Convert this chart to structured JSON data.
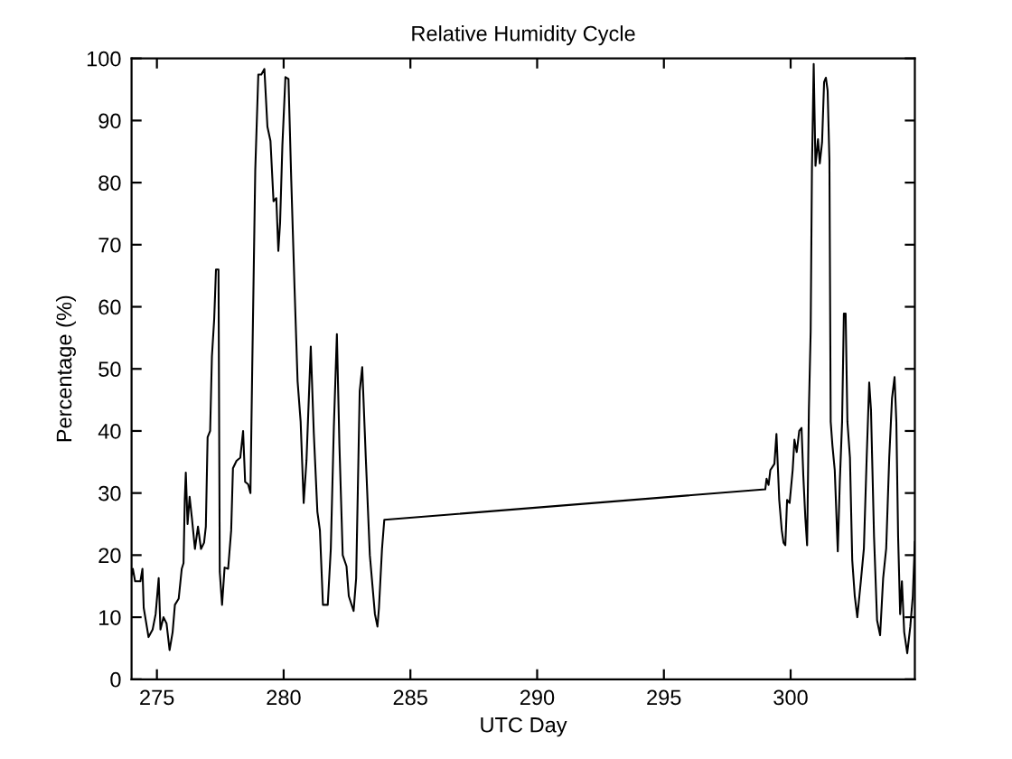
{
  "chart_data": {
    "type": "line",
    "title": "Relative Humidity Cycle",
    "xlabel": "UTC Day",
    "ylabel": "Percentage (%)",
    "xlim": [
      274,
      304.9
    ],
    "ylim": [
      0,
      100
    ],
    "xticks": [
      275,
      280,
      285,
      290,
      295,
      300
    ],
    "yticks": [
      0,
      10,
      20,
      30,
      40,
      50,
      60,
      70,
      80,
      90,
      100
    ],
    "series": [
      {
        "color": "#000000",
        "x": [
          274.0,
          274.05,
          274.14,
          274.35,
          274.43,
          274.48,
          274.67,
          274.83,
          274.95,
          275.07,
          275.14,
          275.26,
          275.38,
          275.5,
          275.62,
          275.71,
          275.86,
          275.98,
          276.05,
          276.1,
          276.14,
          276.21,
          276.29,
          276.38,
          276.5,
          276.62,
          276.74,
          276.86,
          276.93,
          277.0,
          277.1,
          277.17,
          277.26,
          277.33,
          277.43,
          277.48,
          277.57,
          277.67,
          277.81,
          277.93,
          278.0,
          278.14,
          278.29,
          278.4,
          278.48,
          278.6,
          278.69,
          278.76,
          278.88,
          279.0,
          279.12,
          279.24,
          279.36,
          279.48,
          279.6,
          279.71,
          279.79,
          279.86,
          279.95,
          280.07,
          280.19,
          280.3,
          280.43,
          280.55,
          280.67,
          280.79,
          280.9,
          281.07,
          281.19,
          281.33,
          281.43,
          281.55,
          281.74,
          281.86,
          281.98,
          282.1,
          282.2,
          282.33,
          282.48,
          282.57,
          282.76,
          282.86,
          283.0,
          283.1,
          283.24,
          283.4,
          283.6,
          283.7,
          283.76,
          283.88,
          283.97,
          299.0,
          299.05,
          299.13,
          299.2,
          299.36,
          299.44,
          299.48,
          299.55,
          299.65,
          299.72,
          299.79,
          299.86,
          299.96,
          300.08,
          300.15,
          300.24,
          300.34,
          300.43,
          300.5,
          300.58,
          300.65,
          300.72,
          300.79,
          300.84,
          300.91,
          300.98,
          301.08,
          301.15,
          301.24,
          301.32,
          301.39,
          301.46,
          301.53,
          301.58,
          301.65,
          301.74,
          301.86,
          301.94,
          302.03,
          302.1,
          302.17,
          302.24,
          302.34,
          302.43,
          302.53,
          302.63,
          302.77,
          302.89,
          303.0,
          303.1,
          303.17,
          303.29,
          303.41,
          303.53,
          303.65,
          303.77,
          303.89,
          304.0,
          304.1,
          304.17,
          304.24,
          304.32,
          304.39,
          304.48,
          304.6,
          304.72,
          304.82,
          304.9
        ],
        "values": [
          16.8,
          17.8,
          15.8,
          15.8,
          17.8,
          11.5,
          6.8,
          8,
          10.5,
          16.3,
          8,
          10,
          9,
          4.7,
          7.6,
          12,
          13,
          17.8,
          18.7,
          29,
          33.3,
          25,
          29.4,
          26,
          21,
          24.6,
          21,
          22,
          24.6,
          39,
          40,
          52,
          58,
          66,
          66,
          17.3,
          12,
          18,
          17.8,
          24,
          34,
          35.2,
          35.7,
          40,
          31.8,
          31.4,
          30,
          50,
          82,
          97.4,
          97.4,
          98.3,
          89,
          86.7,
          77,
          77.5,
          69,
          73.6,
          86,
          97,
          96.7,
          80.4,
          63,
          48,
          41.5,
          28.4,
          35.2,
          53.6,
          39.6,
          27,
          24,
          12,
          12,
          21,
          40.6,
          55.6,
          37.7,
          20,
          18.2,
          13.4,
          11,
          16.3,
          46.4,
          50.3,
          35.7,
          20,
          10.5,
          8.5,
          11.5,
          21,
          25.7,
          30.6,
          32.3,
          31.3,
          33.7,
          34.7,
          39.5,
          35.7,
          28.9,
          24,
          22,
          21.6,
          28.9,
          28.4,
          33.7,
          38.6,
          36.6,
          40,
          40.5,
          32.8,
          26,
          21.6,
          43.4,
          56,
          82,
          99.1,
          82.7,
          87,
          83.1,
          86.5,
          96.2,
          96.9,
          94.8,
          83.6,
          41.5,
          37.6,
          33.7,
          20.6,
          31.8,
          41.5,
          58.9,
          58.9,
          41.5,
          35.7,
          19.2,
          13.4,
          10,
          15.8,
          21.1,
          35.7,
          47.8,
          43.4,
          23,
          9.5,
          7.1,
          16.3,
          21.1,
          35.7,
          45.3,
          48.7,
          41.5,
          23,
          10.5,
          15.8,
          7.6,
          4.2,
          8.5,
          13.4,
          22.1
        ]
      }
    ]
  }
}
